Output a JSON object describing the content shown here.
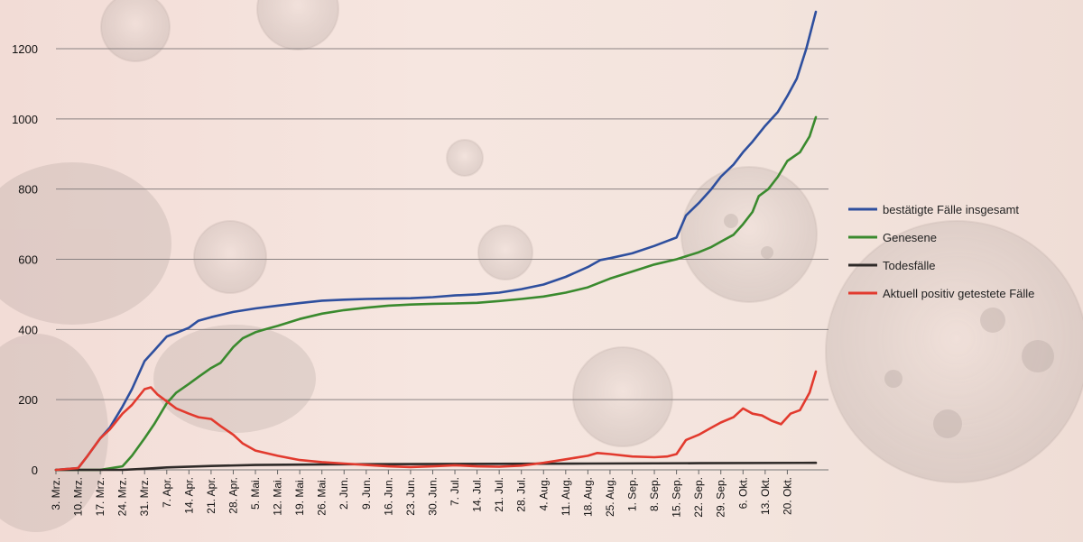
{
  "chart_data": {
    "type": "line",
    "title": "",
    "xlabel": "",
    "ylabel": "",
    "ylim": [
      0,
      1300
    ],
    "yticks": [
      0,
      200,
      400,
      600,
      800,
      1000,
      1200
    ],
    "grid": true,
    "legend_position": "right",
    "x_tick_labels": [
      "3. Mrz.",
      "10. Mrz.",
      "17. Mrz.",
      "24. Mrz.",
      "31. Mrz.",
      "7. Apr.",
      "14. Apr.",
      "21. Apr.",
      "28. Apr.",
      "5. Mai.",
      "12. Mai.",
      "19. Mai.",
      "26. Mai.",
      "2. Jun.",
      "9. Jun.",
      "16. Jun.",
      "23. Jun.",
      "30. Jun.",
      "7. Jul.",
      "14. Jul.",
      "21. Jul.",
      "28. Jul.",
      "4. Aug.",
      "11. Aug.",
      "18. Aug.",
      "25. Aug.",
      "1. Sep.",
      "8. Sep.",
      "15. Sep.",
      "22. Sep.",
      "29. Sep.",
      "6. Okt.",
      "13. Okt.",
      "20. Okt."
    ],
    "x_days": [
      0,
      7,
      14,
      21,
      28,
      35,
      42,
      49,
      56,
      63,
      70,
      77,
      84,
      91,
      98,
      105,
      112,
      119,
      126,
      133,
      140,
      147,
      154,
      161,
      168,
      175,
      182,
      189,
      196,
      203,
      210,
      217,
      224,
      231
    ],
    "series": [
      {
        "name": "bestätigte Fälle insgesamt",
        "color": "#2e4f9e",
        "points": [
          [
            0,
            0
          ],
          [
            7,
            5
          ],
          [
            10,
            40
          ],
          [
            14,
            90
          ],
          [
            17,
            120
          ],
          [
            21,
            180
          ],
          [
            24,
            230
          ],
          [
            28,
            310
          ],
          [
            31,
            340
          ],
          [
            35,
            380
          ],
          [
            38,
            390
          ],
          [
            42,
            405
          ],
          [
            45,
            425
          ],
          [
            49,
            435
          ],
          [
            56,
            450
          ],
          [
            63,
            460
          ],
          [
            70,
            468
          ],
          [
            77,
            475
          ],
          [
            84,
            482
          ],
          [
            91,
            485
          ],
          [
            98,
            487
          ],
          [
            105,
            488
          ],
          [
            112,
            489
          ],
          [
            119,
            492
          ],
          [
            126,
            497
          ],
          [
            133,
            500
          ],
          [
            140,
            505
          ],
          [
            147,
            515
          ],
          [
            154,
            528
          ],
          [
            161,
            550
          ],
          [
            168,
            578
          ],
          [
            172,
            598
          ],
          [
            175,
            603
          ],
          [
            182,
            617
          ],
          [
            189,
            638
          ],
          [
            193,
            652
          ],
          [
            196,
            662
          ],
          [
            199,
            725
          ],
          [
            203,
            760
          ],
          [
            207,
            800
          ],
          [
            210,
            835
          ],
          [
            214,
            870
          ],
          [
            217,
            905
          ],
          [
            220,
            935
          ],
          [
            224,
            980
          ],
          [
            228,
            1020
          ],
          [
            231,
            1065
          ],
          [
            234,
            1115
          ],
          [
            237,
            1200
          ],
          [
            240,
            1305
          ]
        ]
      },
      {
        "name": "Genesene",
        "color": "#3a8a2e",
        "points": [
          [
            0,
            0
          ],
          [
            14,
            0
          ],
          [
            21,
            10
          ],
          [
            24,
            40
          ],
          [
            28,
            90
          ],
          [
            31,
            130
          ],
          [
            35,
            190
          ],
          [
            38,
            220
          ],
          [
            42,
            245
          ],
          [
            45,
            265
          ],
          [
            49,
            290
          ],
          [
            52,
            305
          ],
          [
            56,
            350
          ],
          [
            59,
            375
          ],
          [
            63,
            392
          ],
          [
            66,
            400
          ],
          [
            70,
            410
          ],
          [
            77,
            430
          ],
          [
            84,
            445
          ],
          [
            91,
            455
          ],
          [
            98,
            462
          ],
          [
            105,
            468
          ],
          [
            112,
            471
          ],
          [
            119,
            473
          ],
          [
            126,
            474
          ],
          [
            133,
            476
          ],
          [
            140,
            481
          ],
          [
            147,
            487
          ],
          [
            154,
            494
          ],
          [
            161,
            505
          ],
          [
            168,
            520
          ],
          [
            175,
            545
          ],
          [
            182,
            565
          ],
          [
            189,
            585
          ],
          [
            196,
            600
          ],
          [
            203,
            620
          ],
          [
            207,
            635
          ],
          [
            210,
            650
          ],
          [
            214,
            670
          ],
          [
            217,
            700
          ],
          [
            220,
            735
          ],
          [
            222,
            780
          ],
          [
            225,
            800
          ],
          [
            228,
            835
          ],
          [
            231,
            880
          ],
          [
            235,
            905
          ],
          [
            238,
            950
          ],
          [
            240,
            1005
          ]
        ]
      },
      {
        "name": "Todesfälle",
        "color": "#2e2a28",
        "points": [
          [
            0,
            0
          ],
          [
            21,
            0
          ],
          [
            28,
            3
          ],
          [
            35,
            7
          ],
          [
            49,
            11
          ],
          [
            63,
            14
          ],
          [
            91,
            16
          ],
          [
            126,
            17
          ],
          [
            168,
            18
          ],
          [
            203,
            19
          ],
          [
            240,
            20
          ]
        ]
      },
      {
        "name": "Aktuell positiv getestete Fälle",
        "color": "#e23a2e",
        "points": [
          [
            0,
            0
          ],
          [
            7,
            5
          ],
          [
            10,
            40
          ],
          [
            14,
            90
          ],
          [
            17,
            115
          ],
          [
            21,
            160
          ],
          [
            24,
            185
          ],
          [
            28,
            230
          ],
          [
            30,
            235
          ],
          [
            32,
            215
          ],
          [
            35,
            195
          ],
          [
            38,
            175
          ],
          [
            42,
            160
          ],
          [
            45,
            150
          ],
          [
            49,
            145
          ],
          [
            52,
            125
          ],
          [
            56,
            100
          ],
          [
            59,
            75
          ],
          [
            63,
            55
          ],
          [
            70,
            40
          ],
          [
            77,
            28
          ],
          [
            84,
            22
          ],
          [
            91,
            18
          ],
          [
            98,
            14
          ],
          [
            105,
            10
          ],
          [
            112,
            8
          ],
          [
            119,
            10
          ],
          [
            126,
            13
          ],
          [
            133,
            10
          ],
          [
            140,
            9
          ],
          [
            147,
            12
          ],
          [
            154,
            20
          ],
          [
            161,
            30
          ],
          [
            168,
            40
          ],
          [
            171,
            48
          ],
          [
            175,
            45
          ],
          [
            182,
            38
          ],
          [
            189,
            36
          ],
          [
            193,
            38
          ],
          [
            196,
            45
          ],
          [
            199,
            85
          ],
          [
            203,
            100
          ],
          [
            207,
            120
          ],
          [
            210,
            135
          ],
          [
            214,
            150
          ],
          [
            217,
            175
          ],
          [
            220,
            160
          ],
          [
            223,
            155
          ],
          [
            226,
            140
          ],
          [
            229,
            130
          ],
          [
            232,
            160
          ],
          [
            235,
            170
          ],
          [
            238,
            220
          ],
          [
            240,
            280
          ]
        ]
      }
    ]
  }
}
